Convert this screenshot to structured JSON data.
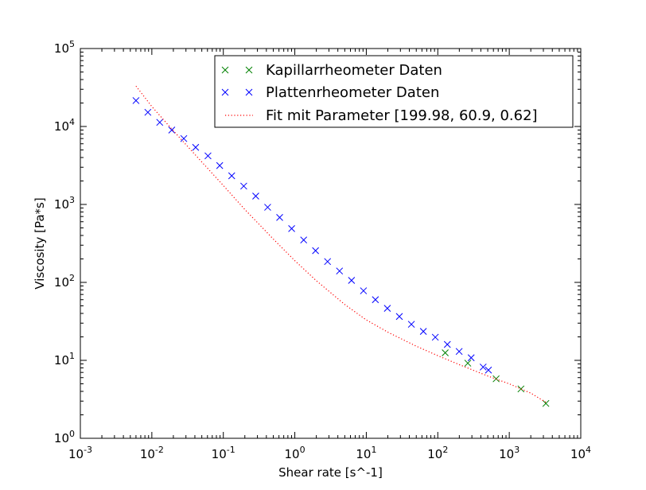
{
  "chart_data": {
    "type": "scatter",
    "xlabel": "Shear rate [s^-1]",
    "ylabel": "Viscosity [Pa*s]",
    "xscale": "log",
    "yscale": "log",
    "xlim": [
      0.001,
      10000
    ],
    "ylim": [
      1,
      100000
    ],
    "x_ticks": [
      {
        "value": 0.001,
        "base": "10",
        "exp": "-3"
      },
      {
        "value": 0.01,
        "base": "10",
        "exp": "-2"
      },
      {
        "value": 0.1,
        "base": "10",
        "exp": "-1"
      },
      {
        "value": 1,
        "base": "10",
        "exp": "0"
      },
      {
        "value": 10,
        "base": "10",
        "exp": "1"
      },
      {
        "value": 100,
        "base": "10",
        "exp": "2"
      },
      {
        "value": 1000,
        "base": "10",
        "exp": "3"
      },
      {
        "value": 10000,
        "base": "10",
        "exp": "4"
      }
    ],
    "y_ticks": [
      {
        "value": 1,
        "base": "10",
        "exp": "0"
      },
      {
        "value": 10,
        "base": "10",
        "exp": "1"
      },
      {
        "value": 100,
        "base": "10",
        "exp": "2"
      },
      {
        "value": 1000,
        "base": "10",
        "exp": "3"
      },
      {
        "value": 10000,
        "base": "10",
        "exp": "4"
      },
      {
        "value": 100000,
        "base": "10",
        "exp": "5"
      }
    ],
    "grid": false,
    "legend_position": "top-right",
    "series": [
      {
        "name": "Kapillarrheometer Daten",
        "kind": "scatter",
        "marker": "x",
        "color": "#008000",
        "x": [
          127,
          263,
          655,
          1457,
          3250
        ],
        "y": [
          12.5,
          9.2,
          5.8,
          4.3,
          2.8
        ]
      },
      {
        "name": "Plattenrheometer Daten",
        "kind": "scatter",
        "marker": "x",
        "color": "#0000ff",
        "x": [
          0.006,
          0.0088,
          0.0129,
          0.019,
          0.028,
          0.041,
          0.061,
          0.089,
          0.131,
          0.193,
          0.284,
          0.417,
          0.614,
          0.903,
          1.33,
          1.95,
          2.87,
          4.22,
          6.21,
          9.13,
          13.4,
          19.7,
          29.0,
          42.7,
          62.8,
          92.3,
          136,
          199,
          293,
          431,
          511
        ],
        "y": [
          21500,
          15200,
          11300,
          9000,
          7000,
          5400,
          4200,
          3150,
          2330,
          1720,
          1280,
          920,
          680,
          490,
          350,
          255,
          185,
          140,
          106,
          78,
          60,
          46.5,
          36.5,
          29,
          23.5,
          19.8,
          16,
          13,
          10.8,
          8.2,
          7.5
        ]
      },
      {
        "name": "Fit mit Parameter [199.98, 60.9, 0.62]",
        "kind": "line",
        "style": "dotted",
        "color": "#ff0000",
        "x": [
          0.006,
          0.01,
          0.02,
          0.05,
          0.1,
          0.2,
          0.5,
          1,
          2,
          5,
          10,
          20,
          50,
          100,
          200,
          500,
          1000,
          2000,
          3250
        ],
        "y": [
          33000,
          18000,
          8800,
          3500,
          1750,
          860,
          360,
          190,
          105,
          52,
          33,
          23,
          15.2,
          11.5,
          8.8,
          6.3,
          5.0,
          3.8,
          2.9
        ]
      }
    ]
  }
}
